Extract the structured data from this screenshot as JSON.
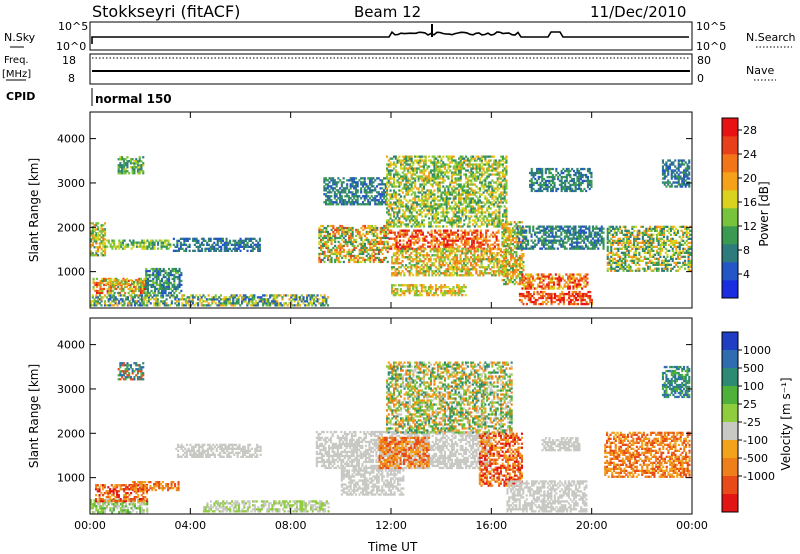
{
  "header": {
    "title": "Stokkseyri (fitACF)",
    "beam": "Beam 12",
    "date": "11/Dec/2010"
  },
  "noise_panel": {
    "left_label": "N.Sky",
    "right_label": "N.Search",
    "ticks": [
      "10^5",
      "10^0"
    ]
  },
  "freq_panel": {
    "left_label_1": "Freq.",
    "left_label_2": "[MHz]",
    "left_ticks": [
      "18",
      "8"
    ],
    "right_label": "Nave",
    "right_ticks": [
      "80",
      "0"
    ]
  },
  "cpid": {
    "label": "CPID",
    "value": "normal 150"
  },
  "colors": {
    "power": [
      "#1a2de0",
      "#2456c8",
      "#2e7b7e",
      "#3b9a52",
      "#77c43c",
      "#d9d21e",
      "#f5a21a",
      "#f2751a",
      "#e8401a",
      "#e81212"
    ],
    "velocity": [
      "#1f3ec4",
      "#2e6db0",
      "#2d8a73",
      "#4fb03a",
      "#8fcc3e",
      "#c8c8c4",
      "#f2a31b",
      "#ee7f1a",
      "#e84a18",
      "#e21515"
    ]
  },
  "chart_data": [
    {
      "type": "heatmap",
      "title": "",
      "xlabel": "Time UT",
      "ylabel": "Slant Range [km]",
      "x_ticks": [
        "00:00",
        "04:00",
        "08:00",
        "12:00",
        "16:00",
        "20:00",
        "00:00"
      ],
      "xlim_hours": [
        0,
        24
      ],
      "y_ticks": [
        1000,
        2000,
        3000,
        4000
      ],
      "ylim_km": [
        180,
        4600
      ],
      "colorbar_label": "Power [dB]",
      "colorbar_ticks": [
        4,
        8,
        12,
        16,
        20,
        24,
        28
      ],
      "colorbar_range": [
        0,
        30
      ],
      "regions": [
        {
          "t0": 0.0,
          "t1": 0.6,
          "r0": 1350,
          "r1": 2100,
          "v0": 8,
          "v1": 22
        },
        {
          "t0": 0.5,
          "t1": 3.2,
          "r0": 1500,
          "r1": 1700,
          "v0": 8,
          "v1": 18
        },
        {
          "t0": 0.1,
          "t1": 2.3,
          "r0": 500,
          "r1": 850,
          "v0": 10,
          "v1": 28
        },
        {
          "t0": 0.6,
          "t1": 2.2,
          "r0": 700,
          "r1": 800,
          "v0": 10,
          "v1": 24
        },
        {
          "t0": 0.0,
          "t1": 9.5,
          "r0": 220,
          "r1": 480,
          "v0": 3,
          "v1": 20
        },
        {
          "t0": 1.1,
          "t1": 2.1,
          "r0": 3200,
          "r1": 3600,
          "v0": 6,
          "v1": 16
        },
        {
          "t0": 2.2,
          "t1": 3.6,
          "r0": 500,
          "r1": 1050,
          "v0": 4,
          "v1": 14
        },
        {
          "t0": 3.3,
          "t1": 6.8,
          "r0": 1450,
          "r1": 1750,
          "v0": 4,
          "v1": 10
        },
        {
          "t0": 9.1,
          "t1": 11.9,
          "r0": 1200,
          "r1": 2050,
          "v0": 8,
          "v1": 26
        },
        {
          "t0": 9.3,
          "t1": 11.8,
          "r0": 2500,
          "r1": 3100,
          "v0": 4,
          "v1": 12
        },
        {
          "t0": 11.9,
          "t1": 16.3,
          "r0": 1500,
          "r1": 1950,
          "v0": 18,
          "v1": 30
        },
        {
          "t0": 12.0,
          "t1": 16.6,
          "r0": 900,
          "r1": 1500,
          "v0": 10,
          "v1": 24
        },
        {
          "t0": 11.8,
          "t1": 16.6,
          "r0": 2000,
          "r1": 3600,
          "v0": 8,
          "v1": 20
        },
        {
          "t0": 12.0,
          "t1": 15.0,
          "r0": 450,
          "r1": 700,
          "v0": 12,
          "v1": 22
        },
        {
          "t0": 16.4,
          "t1": 17.3,
          "r0": 700,
          "r1": 2100,
          "v0": 10,
          "v1": 24
        },
        {
          "t0": 17.2,
          "t1": 19.8,
          "r0": 600,
          "r1": 950,
          "v0": 16,
          "v1": 30
        },
        {
          "t0": 17.1,
          "t1": 20.0,
          "r0": 250,
          "r1": 550,
          "v0": 20,
          "v1": 30
        },
        {
          "t0": 17.0,
          "t1": 20.5,
          "r0": 1500,
          "r1": 2000,
          "v0": 4,
          "v1": 12
        },
        {
          "t0": 17.5,
          "t1": 20.0,
          "r0": 2800,
          "r1": 3300,
          "v0": 4,
          "v1": 12
        },
        {
          "t0": 20.6,
          "t1": 23.9,
          "r0": 1000,
          "r1": 2000,
          "v0": 6,
          "v1": 22
        },
        {
          "t0": 22.8,
          "t1": 23.9,
          "r0": 2900,
          "r1": 3500,
          "v0": 4,
          "v1": 10
        }
      ]
    },
    {
      "type": "heatmap",
      "title": "",
      "xlabel": "Time UT",
      "ylabel": "Slant Range [km]",
      "x_ticks": [
        "00:00",
        "04:00",
        "08:00",
        "12:00",
        "16:00",
        "20:00",
        "00:00"
      ],
      "xlim_hours": [
        0,
        24
      ],
      "y_ticks": [
        1000,
        2000,
        3000,
        4000
      ],
      "ylim_km": [
        180,
        4600
      ],
      "colorbar_label": "Velocity [m s⁻¹]",
      "colorbar_ticks": [
        "1000",
        "500",
        "100",
        "25",
        "-25",
        "-100",
        "-500",
        "-1000"
      ],
      "regions": [
        {
          "t0": 0.0,
          "t1": 2.3,
          "r0": 200,
          "r1": 480,
          "bins": [
            3,
            4,
            5
          ]
        },
        {
          "t0": 0.2,
          "t1": 2.3,
          "r0": 450,
          "r1": 850,
          "bins": [
            6,
            7,
            8,
            9
          ]
        },
        {
          "t0": 1.1,
          "t1": 2.1,
          "r0": 3200,
          "r1": 3600,
          "bins": [
            1,
            2,
            3,
            8
          ]
        },
        {
          "t0": 1.6,
          "t1": 3.5,
          "r0": 700,
          "r1": 900,
          "bins": [
            6,
            7,
            8
          ]
        },
        {
          "t0": 3.4,
          "t1": 6.8,
          "r0": 1450,
          "r1": 1750,
          "bins": [
            5
          ]
        },
        {
          "t0": 4.5,
          "t1": 9.5,
          "r0": 220,
          "r1": 480,
          "bins": [
            4,
            5
          ]
        },
        {
          "t0": 9.0,
          "t1": 16.0,
          "r0": 1200,
          "r1": 2050,
          "bins": [
            5
          ]
        },
        {
          "t0": 10.0,
          "t1": 12.5,
          "r0": 600,
          "r1": 1200,
          "bins": [
            5
          ]
        },
        {
          "t0": 11.8,
          "t1": 16.8,
          "r0": 2000,
          "r1": 3600,
          "bins": [
            2,
            3,
            4,
            5,
            6,
            7
          ]
        },
        {
          "t0": 11.5,
          "t1": 13.5,
          "r0": 1200,
          "r1": 1900,
          "bins": [
            6,
            7,
            8
          ]
        },
        {
          "t0": 15.5,
          "t1": 17.2,
          "r0": 800,
          "r1": 2000,
          "bins": [
            6,
            7,
            8,
            9
          ]
        },
        {
          "t0": 16.6,
          "t1": 19.8,
          "r0": 220,
          "r1": 900,
          "bins": [
            5
          ]
        },
        {
          "t0": 18.0,
          "t1": 19.5,
          "r0": 1600,
          "r1": 1900,
          "bins": [
            5
          ]
        },
        {
          "t0": 20.5,
          "t1": 23.9,
          "r0": 1000,
          "r1": 2000,
          "bins": [
            6,
            7,
            8
          ]
        },
        {
          "t0": 22.8,
          "t1": 23.9,
          "r0": 2800,
          "r1": 3500,
          "bins": [
            1,
            2,
            3
          ]
        }
      ]
    }
  ]
}
